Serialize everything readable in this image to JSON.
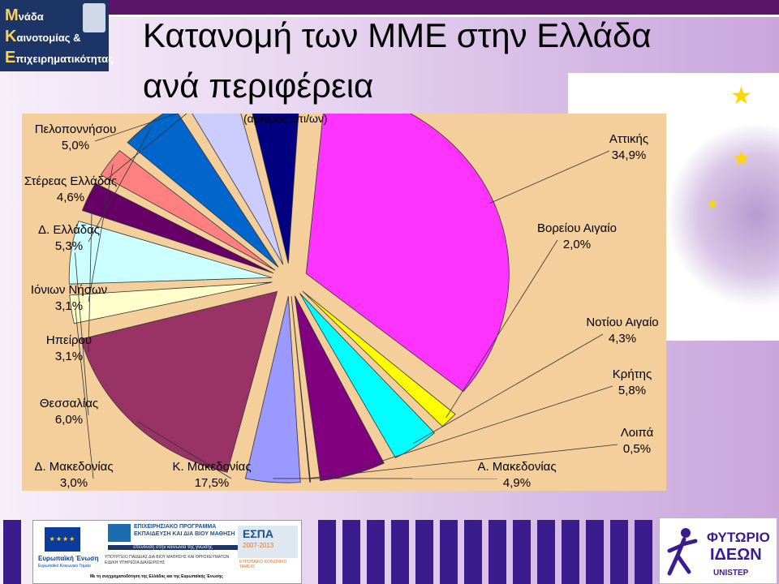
{
  "header": {
    "title_line1": "Κατανομή των ΜΜΕ στην Ελλάδα",
    "title_line2": "ανά περιφέρεια",
    "logo": {
      "line1": "νάδα",
      "line2": "αινοτομίας &",
      "line3": "πιχειρηματικότητας",
      "initial1": "Μ",
      "initial2": "Κ",
      "initial3": "Ε"
    }
  },
  "colors": {
    "header_bar": "#5a1468",
    "chart_background": "#f4cf9b"
  },
  "chart_data": {
    "type": "pie",
    "title": "(αριθμός επι/ων)",
    "slices": [
      {
        "label": "Αττικής",
        "value": 34.9,
        "display": "34,9%",
        "color": "#ff33ff"
      },
      {
        "label": "Βορείου Αιγαίο",
        "value": 2.0,
        "display": "2,0%",
        "color": "#ffff00"
      },
      {
        "label": "Νοτίου Αιγαίο",
        "value": 4.3,
        "display": "4,3%",
        "color": "#00ffff"
      },
      {
        "label": "Κρήτης",
        "value": 5.8,
        "display": "5,8%",
        "color": "#800080"
      },
      {
        "label": "Λοιπά",
        "value": 0.5,
        "display": "0,5%",
        "color": "#800000"
      },
      {
        "label": "Α. Μακεδονίας",
        "value": 4.9,
        "display": "4,9%",
        "color": "#9999ff"
      },
      {
        "label": "Κ. Μακεδονίας",
        "value": 17.5,
        "display": "17,5%",
        "color": "#993366"
      },
      {
        "label": "Δ. Μακεδονίας",
        "value": 3.0,
        "display": "3,0%",
        "color": "#ffffcc"
      },
      {
        "label": "Θεσσαλίας",
        "value": 6.0,
        "display": "6,0%",
        "color": "#ccffff"
      },
      {
        "label": "Ηπείρου",
        "value": 3.1,
        "display": "3,1%",
        "color": "#660066"
      },
      {
        "label": "Ιόνιων Νήσων",
        "value": 3.1,
        "display": "3,1%",
        "color": "#ff8080"
      },
      {
        "label": "Δ. Ελλάδας",
        "value": 5.3,
        "display": "5,3%",
        "color": "#0066cc"
      },
      {
        "label": "Στέρεας Ελλάδας",
        "value": 4.6,
        "display": "4,6%",
        "color": "#ccccff"
      },
      {
        "label": "Πελοποννήσου",
        "value": 5.0,
        "display": "5,0%",
        "color": "#000080"
      }
    ]
  },
  "footer": {
    "eu_label": "Ευρωπαϊκή Ένωση",
    "eu_sub": "Ευρωπαϊκό Κοινωνικό Ταμείο",
    "program_text": "ΕΠΙΧΕΙΡΗΣΙΑΚΟ ΠΡΟΓΡΑΜΜΑ ΕΚΠΑΙΔΕΥΣΗ ΚΑΙ ΔΙΑ ΒΙΟΥ ΜΑΘΗΣΗ",
    "program_motto": "επένδυση στην κοινωνία της γνώσης",
    "ministry": "ΥΠΟΥΡΓΕΙΟ ΠΑΙΔΕΙΑΣ ΔΙΑ ΒΙΟΥ ΜΑΘΗΣΗΣ ΚΑΙ ΘΡΗΣΚΕΥΜΑΤΩΝ ΕΙΔΙΚΗ ΥΠΗΡΕΣΙΑ ΔΙΑΧΕΙΡΙΣΗΣ",
    "espa_title": "ΕΣΠΑ",
    "espa_years": "2007-2013",
    "espa_fund": "ΕΥΡΩΠΑΪΚΟ ΚΟΙΝΩΝΙΚΟ ΤΑΜΕΙΟ",
    "cofund": "Με τη συγχρηματοδότηση της Ελλάδας και της Ευρωπαϊκής Ένωσης",
    "right_title1": "ΦΥΤΩΡΙΟ",
    "right_title2": "ΙΔΕΩΝ",
    "right_sub": "UNISTEP"
  }
}
